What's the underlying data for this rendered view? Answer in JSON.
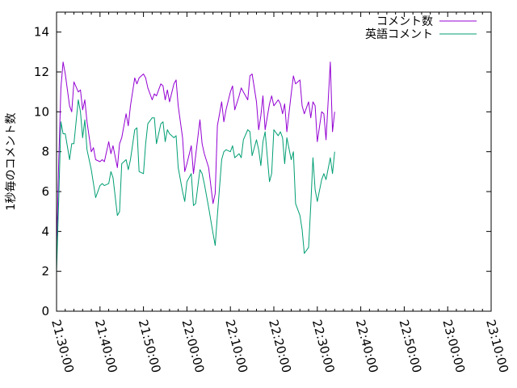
{
  "chart_data": {
    "type": "line",
    "title": "",
    "xlabel": "",
    "ylabel": "1秒毎のコメント数",
    "ylim": [
      0,
      15
    ],
    "xlim": [
      "21:30:00",
      "23:10:00"
    ],
    "grid": false,
    "legend_position": "top-right",
    "y_ticks": [
      "0",
      "2",
      "4",
      "6",
      "8",
      "10",
      "12",
      "14"
    ],
    "x_ticks": [
      "21:30:00",
      "21:40:00",
      "21:50:00",
      "22:00:00",
      "22:10:00",
      "22:20:00",
      "22:30:00",
      "22:40:00",
      "22:50:00",
      "23:00:00",
      "23:10:00"
    ],
    "series": [
      {
        "name": "コメント数",
        "color": "#9400d3",
        "values": [
          [
            "21:30:00",
            3.0
          ],
          [
            "21:30:30",
            7.5
          ],
          [
            "21:31:00",
            11.2
          ],
          [
            "21:31:30",
            12.5
          ],
          [
            "21:32:00",
            11.9
          ],
          [
            "21:33:00",
            10.3
          ],
          [
            "21:33:30",
            10.0
          ],
          [
            "21:34:00",
            11.5
          ],
          [
            "21:35:00",
            11.0
          ],
          [
            "21:35:30",
            11.1
          ],
          [
            "21:36:00",
            10.1
          ],
          [
            "21:36:30",
            10.6
          ],
          [
            "21:37:00",
            9.5
          ],
          [
            "21:38:00",
            8.0
          ],
          [
            "21:38:30",
            8.2
          ],
          [
            "21:39:00",
            7.6
          ],
          [
            "21:40:00",
            7.5
          ],
          [
            "21:40:30",
            7.6
          ],
          [
            "21:41:00",
            7.5
          ],
          [
            "21:42:00",
            8.5
          ],
          [
            "21:42:30",
            7.9
          ],
          [
            "21:43:00",
            8.3
          ],
          [
            "21:44:00",
            7.2
          ],
          [
            "21:44:30",
            8.4
          ],
          [
            "21:45:00",
            8.7
          ],
          [
            "21:46:00",
            9.9
          ],
          [
            "21:46:30",
            9.3
          ],
          [
            "21:47:00",
            10.3
          ],
          [
            "21:48:00",
            11.7
          ],
          [
            "21:48:30",
            11.4
          ],
          [
            "21:49:00",
            11.7
          ],
          [
            "21:50:00",
            11.9
          ],
          [
            "21:50:30",
            11.7
          ],
          [
            "21:51:00",
            11.2
          ],
          [
            "21:52:00",
            10.6
          ],
          [
            "21:52:30",
            10.9
          ],
          [
            "21:53:00",
            10.8
          ],
          [
            "21:54:00",
            11.4
          ],
          [
            "21:54:30",
            11.3
          ],
          [
            "21:55:00",
            10.6
          ],
          [
            "21:55:30",
            11.1
          ],
          [
            "21:56:00",
            10.5
          ],
          [
            "21:57:00",
            11.4
          ],
          [
            "21:57:30",
            11.6
          ],
          [
            "21:58:00",
            10.3
          ],
          [
            "21:59:00",
            8.7
          ],
          [
            "21:59:30",
            7.0
          ],
          [
            "22:00:00",
            7.4
          ],
          [
            "22:01:00",
            8.3
          ],
          [
            "22:01:30",
            6.9
          ],
          [
            "22:02:00",
            7.8
          ],
          [
            "22:03:00",
            9.6
          ],
          [
            "22:03:30",
            8.4
          ],
          [
            "22:04:00",
            7.9
          ],
          [
            "22:05:00",
            7.2
          ],
          [
            "22:06:00",
            5.4
          ],
          [
            "22:06:30",
            5.9
          ],
          [
            "22:07:00",
            9.3
          ],
          [
            "22:08:00",
            10.5
          ],
          [
            "22:08:30",
            9.5
          ],
          [
            "22:09:00",
            10.1
          ],
          [
            "22:10:00",
            11.0
          ],
          [
            "22:10:30",
            11.3
          ],
          [
            "22:11:00",
            10.1
          ],
          [
            "22:12:00",
            10.8
          ],
          [
            "22:12:30",
            11.2
          ],
          [
            "22:13:00",
            11.0
          ],
          [
            "22:14:00",
            10.6
          ],
          [
            "22:14:30",
            11.8
          ],
          [
            "22:15:00",
            11.9
          ],
          [
            "22:16:00",
            10.5
          ],
          [
            "22:16:30",
            9.1
          ],
          [
            "22:17:00",
            9.8
          ],
          [
            "22:17:30",
            10.8
          ],
          [
            "22:18:00",
            9.1
          ],
          [
            "22:19:00",
            10.4
          ],
          [
            "22:19:30",
            10.8
          ],
          [
            "22:20:00",
            10.3
          ],
          [
            "22:21:00",
            10.6
          ],
          [
            "22:21:30",
            10.4
          ],
          [
            "22:22:00",
            9.9
          ],
          [
            "22:22:30",
            10.4
          ],
          [
            "22:23:00",
            9.0
          ],
          [
            "22:24:00",
            10.9
          ],
          [
            "22:24:30",
            11.8
          ],
          [
            "22:25:00",
            11.4
          ],
          [
            "22:26:00",
            11.6
          ],
          [
            "22:26:30",
            10.3
          ],
          [
            "22:27:00",
            9.9
          ],
          [
            "22:28:00",
            10.5
          ],
          [
            "22:28:30",
            9.7
          ],
          [
            "22:29:00",
            10.5
          ],
          [
            "22:29:30",
            10.3
          ],
          [
            "22:30:00",
            8.5
          ],
          [
            "22:31:00",
            10.0
          ],
          [
            "22:31:30",
            9.9
          ],
          [
            "22:32:00",
            8.6
          ],
          [
            "22:33:00",
            12.5
          ],
          [
            "22:33:30",
            9.0
          ],
          [
            "22:34:00",
            10.0
          ]
        ]
      },
      {
        "name": "英語コメント",
        "color": "#009e73",
        "values": [
          [
            "21:30:00",
            2.0
          ],
          [
            "21:30:30",
            5.6
          ],
          [
            "21:31:00",
            9.5
          ],
          [
            "21:31:30",
            8.9
          ],
          [
            "21:32:00",
            8.9
          ],
          [
            "21:33:00",
            7.6
          ],
          [
            "21:33:30",
            8.4
          ],
          [
            "21:34:00",
            8.4
          ],
          [
            "21:35:00",
            10.6
          ],
          [
            "21:35:30",
            10.0
          ],
          [
            "21:36:00",
            8.7
          ],
          [
            "21:36:30",
            9.6
          ],
          [
            "21:37:00",
            8.1
          ],
          [
            "21:38:00",
            7.1
          ],
          [
            "21:38:30",
            6.4
          ],
          [
            "21:39:00",
            5.7
          ],
          [
            "21:40:00",
            6.3
          ],
          [
            "21:40:30",
            6.4
          ],
          [
            "21:41:00",
            6.3
          ],
          [
            "21:42:00",
            6.4
          ],
          [
            "21:42:30",
            7.0
          ],
          [
            "21:43:00",
            6.7
          ],
          [
            "21:44:00",
            4.8
          ],
          [
            "21:44:30",
            5.0
          ],
          [
            "21:45:00",
            7.4
          ],
          [
            "21:46:00",
            7.6
          ],
          [
            "21:46:30",
            7.1
          ],
          [
            "21:47:00",
            7.6
          ],
          [
            "21:48:00",
            9.1
          ],
          [
            "21:48:30",
            9.2
          ],
          [
            "21:49:00",
            7.0
          ],
          [
            "21:50:00",
            6.9
          ],
          [
            "21:50:30",
            8.4
          ],
          [
            "21:51:00",
            9.4
          ],
          [
            "21:52:00",
            9.7
          ],
          [
            "21:52:30",
            9.7
          ],
          [
            "21:53:00",
            8.4
          ],
          [
            "21:54:00",
            9.4
          ],
          [
            "21:54:30",
            9.5
          ],
          [
            "21:55:00",
            8.5
          ],
          [
            "21:55:30",
            9.1
          ],
          [
            "21:56:00",
            8.9
          ],
          [
            "21:57:00",
            8.7
          ],
          [
            "21:57:30",
            8.8
          ],
          [
            "21:58:00",
            7.2
          ],
          [
            "21:59:00",
            6.0
          ],
          [
            "21:59:30",
            5.5
          ],
          [
            "22:00:00",
            6.5
          ],
          [
            "22:01:00",
            6.9
          ],
          [
            "22:01:30",
            5.3
          ],
          [
            "22:02:00",
            5.4
          ],
          [
            "22:03:00",
            7.1
          ],
          [
            "22:03:30",
            6.9
          ],
          [
            "22:04:00",
            6.4
          ],
          [
            "22:05:00",
            5.2
          ],
          [
            "22:06:00",
            3.9
          ],
          [
            "22:06:30",
            3.3
          ],
          [
            "22:07:00",
            4.8
          ],
          [
            "22:08:00",
            7.6
          ],
          [
            "22:08:30",
            8.0
          ],
          [
            "22:09:00",
            8.1
          ],
          [
            "22:10:00",
            8.0
          ],
          [
            "22:10:30",
            8.3
          ],
          [
            "22:11:00",
            7.7
          ],
          [
            "22:12:00",
            7.9
          ],
          [
            "22:12:30",
            7.7
          ],
          [
            "22:13:00",
            8.6
          ],
          [
            "22:14:00",
            9.1
          ],
          [
            "22:14:30",
            9.0
          ],
          [
            "22:15:00",
            7.8
          ],
          [
            "22:16:00",
            8.6
          ],
          [
            "22:16:30",
            8.1
          ],
          [
            "22:17:00",
            7.3
          ],
          [
            "22:17:30",
            8.5
          ],
          [
            "22:18:00",
            9.0
          ],
          [
            "22:19:00",
            6.5
          ],
          [
            "22:19:30",
            6.9
          ],
          [
            "22:20:00",
            9.1
          ],
          [
            "22:21:00",
            8.8
          ],
          [
            "22:21:30",
            9.0
          ],
          [
            "22:22:00",
            8.7
          ],
          [
            "22:22:30",
            7.4
          ],
          [
            "22:23:00",
            8.7
          ],
          [
            "22:24:00",
            7.6
          ],
          [
            "22:24:30",
            8.0
          ],
          [
            "22:25:00",
            5.4
          ],
          [
            "22:26:00",
            4.8
          ],
          [
            "22:26:30",
            4.1
          ],
          [
            "22:27:00",
            2.9
          ],
          [
            "22:28:00",
            3.2
          ],
          [
            "22:28:30",
            5.3
          ],
          [
            "22:29:00",
            7.7
          ],
          [
            "22:29:30",
            6.1
          ],
          [
            "22:30:00",
            5.5
          ],
          [
            "22:31:00",
            6.6
          ],
          [
            "22:31:30",
            6.9
          ],
          [
            "22:32:00",
            6.6
          ],
          [
            "22:33:00",
            7.7
          ],
          [
            "22:33:30",
            6.9
          ],
          [
            "22:34:00",
            8.0
          ]
        ]
      }
    ]
  }
}
